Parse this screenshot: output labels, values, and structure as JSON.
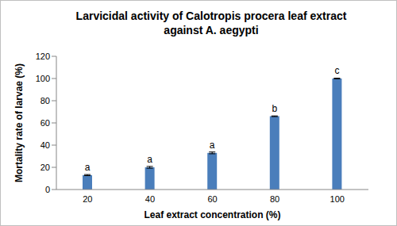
{
  "chart_data": {
    "type": "bar",
    "title": "Larvicidal activity of Calotropis procera leaf extract against A. aegypti",
    "x_label": "Leaf extract concentration (%)",
    "y_label": "Mortality rate of larvae (%)",
    "categories": [
      "20",
      "40",
      "60",
      "80",
      "100"
    ],
    "values": [
      13,
      20,
      33,
      66,
      100
    ],
    "errors": [
      0.5,
      0.8,
      0.8,
      0.3,
      0.3
    ],
    "annotations": [
      "a",
      "a",
      "a",
      "b",
      "c"
    ],
    "color": "#4a7ebb",
    "ylim": [
      0,
      120
    ],
    "yticks": [
      0,
      20,
      40,
      60,
      80,
      100,
      120
    ],
    "grid": false
  }
}
